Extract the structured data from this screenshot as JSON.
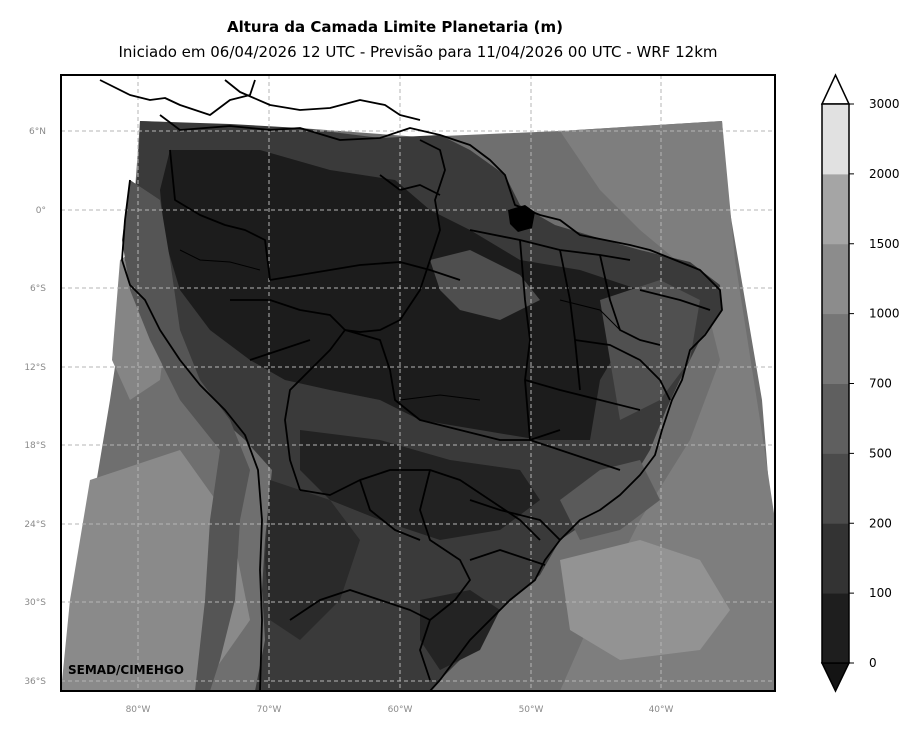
{
  "title": "Altura da Camada Limite Planetaria (m)",
  "subtitle": "Iniciado em 06/04/2026 12 UTC - Previsão para 11/04/2026 00 UTC - WRF 12km",
  "brand": "SEMAD/CIMEHGO",
  "lat_ticks": [
    "6°N",
    "0°",
    "6°S",
    "12°S",
    "18°S",
    "24°S",
    "30°S",
    "36°S"
  ],
  "lon_ticks": [
    "80°W",
    "70°W",
    "60°W",
    "50°W",
    "40°W"
  ],
  "colorbar": {
    "levels": [
      0,
      100,
      200,
      500,
      700,
      1000,
      1500,
      2000,
      3000
    ],
    "labels": [
      "0",
      "100",
      "200",
      "500",
      "700",
      "1000",
      "1500",
      "2000",
      "3000"
    ],
    "colors": [
      "#1e1e1e",
      "#333333",
      "#4b4b4b",
      "#5f5f5f",
      "#767676",
      "#8c8c8c",
      "#a5a5a5",
      "#e1e1e1"
    ],
    "extend_low_color": "#141414",
    "extend_high_color": "#ffffff"
  },
  "colors": {
    "ocean_field": "#767676",
    "continent_field": "#2a2a2a",
    "border": "#000000"
  }
}
